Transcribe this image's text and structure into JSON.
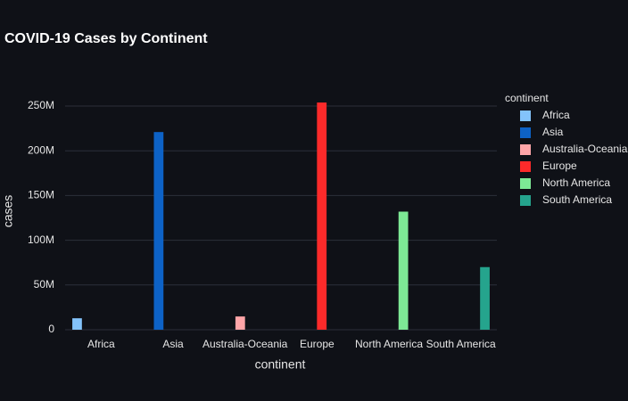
{
  "chart_data": {
    "type": "bar",
    "title": "COVID-19 Cases by Continent",
    "x_label": "continent",
    "y_label": "cases",
    "legend_title": "continent",
    "categories": [
      "Africa",
      "Asia",
      "Australia-Oceania",
      "Europe",
      "North America",
      "South America"
    ],
    "series": [
      {
        "name": "Africa",
        "color": "#83c3fb",
        "values": [
          12800000,
          null,
          null,
          null,
          null,
          null
        ]
      },
      {
        "name": "Asia",
        "color": "#0d62c6",
        "values": [
          null,
          221000000,
          null,
          null,
          null,
          null
        ]
      },
      {
        "name": "Australia-Oceania",
        "color": "#ffa5a8",
        "values": [
          null,
          null,
          14800000,
          null,
          null,
          null
        ]
      },
      {
        "name": "Europe",
        "color": "#fc2a2a",
        "values": [
          null,
          null,
          null,
          254000000,
          null,
          null
        ]
      },
      {
        "name": "North America",
        "color": "#7de995",
        "values": [
          null,
          null,
          null,
          null,
          132000000,
          null
        ]
      },
      {
        "name": "South America",
        "color": "#25a48d",
        "values": [
          null,
          null,
          null,
          null,
          null,
          70000000
        ]
      }
    ],
    "ylim": [
      0,
      265000000
    ],
    "yticks": [
      0,
      {
        "value": 50000000,
        "label": "50M"
      },
      {
        "value": 100000000,
        "label": "100M"
      },
      {
        "value": 150000000,
        "label": "150M"
      },
      {
        "value": 200000000,
        "label": "200M"
      },
      {
        "value": 250000000,
        "label": "250M"
      }
    ],
    "grid": true,
    "legend": "right"
  }
}
